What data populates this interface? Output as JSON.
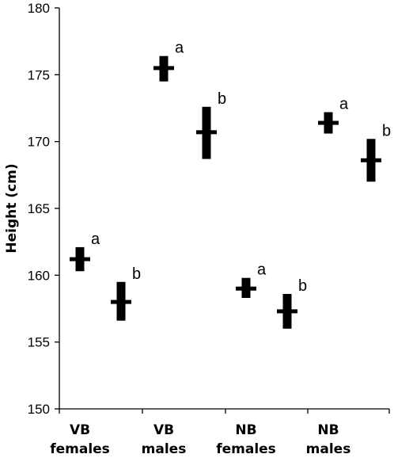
{
  "chart_data": {
    "type": "scatter",
    "ylabel": "Height (cm)",
    "ylim": [
      150,
      180
    ],
    "yticks": [
      150,
      155,
      160,
      165,
      170,
      175,
      180
    ],
    "categories": [
      {
        "line1": "VB",
        "line2": "females"
      },
      {
        "line1": "VB",
        "line2": "males"
      },
      {
        "line1": "NB",
        "line2": "females"
      },
      {
        "line1": "NB",
        "line2": "males"
      }
    ],
    "points": [
      {
        "group": 0,
        "slot": "a",
        "mean": 161.2,
        "low": 160.3,
        "high": 162.1,
        "label": "a"
      },
      {
        "group": 0,
        "slot": "b",
        "mean": 158.0,
        "low": 156.6,
        "high": 159.5,
        "label": "b"
      },
      {
        "group": 1,
        "slot": "a",
        "mean": 175.5,
        "low": 174.5,
        "high": 176.4,
        "label": "a"
      },
      {
        "group": 1,
        "slot": "b",
        "mean": 170.7,
        "low": 168.7,
        "high": 172.6,
        "label": "b"
      },
      {
        "group": 2,
        "slot": "a",
        "mean": 159.0,
        "low": 158.3,
        "high": 159.8,
        "label": "a"
      },
      {
        "group": 2,
        "slot": "b",
        "mean": 157.3,
        "low": 156.0,
        "high": 158.6,
        "label": "b"
      },
      {
        "group": 3,
        "slot": "a",
        "mean": 171.4,
        "low": 170.6,
        "high": 172.2,
        "label": "a"
      },
      {
        "group": 3,
        "slot": "b",
        "mean": 168.6,
        "low": 167.0,
        "high": 170.2,
        "label": "b"
      }
    ],
    "grid": false,
    "legend": "none"
  }
}
